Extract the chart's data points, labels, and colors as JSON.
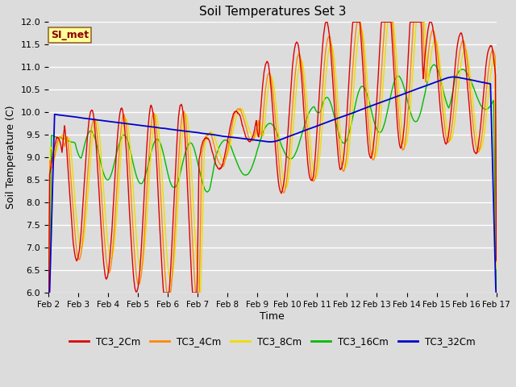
{
  "title": "Soil Temperatures Set 3",
  "xlabel": "Time",
  "ylabel": "Soil Temperature (C)",
  "ylim": [
    6.0,
    12.0
  ],
  "yticks": [
    6.0,
    6.5,
    7.0,
    7.5,
    8.0,
    8.5,
    9.0,
    9.5,
    10.0,
    10.5,
    11.0,
    11.5,
    12.0
  ],
  "bg_color": "#dcdcdc",
  "series": {
    "TC3_2Cm": {
      "color": "#dd0000",
      "lw": 1.0
    },
    "TC3_4Cm": {
      "color": "#ff8800",
      "lw": 1.0
    },
    "TC3_8Cm": {
      "color": "#eedd00",
      "lw": 1.0
    },
    "TC3_16Cm": {
      "color": "#00bb00",
      "lw": 1.0
    },
    "TC3_32Cm": {
      "color": "#0000cc",
      "lw": 1.0
    }
  },
  "xtick_labels": [
    "Feb 2",
    "Feb 3",
    "Feb 4",
    "Feb 5",
    "Feb 6",
    "Feb 7",
    "Feb 8",
    "Feb 9",
    "Feb 10",
    "Feb 11",
    "Feb 12",
    "Feb 13",
    "Feb 14",
    "Feb 15",
    "Feb 16",
    "Feb 17"
  ],
  "watermark": "SI_met",
  "figsize": [
    6.4,
    4.8
  ],
  "dpi": 100
}
